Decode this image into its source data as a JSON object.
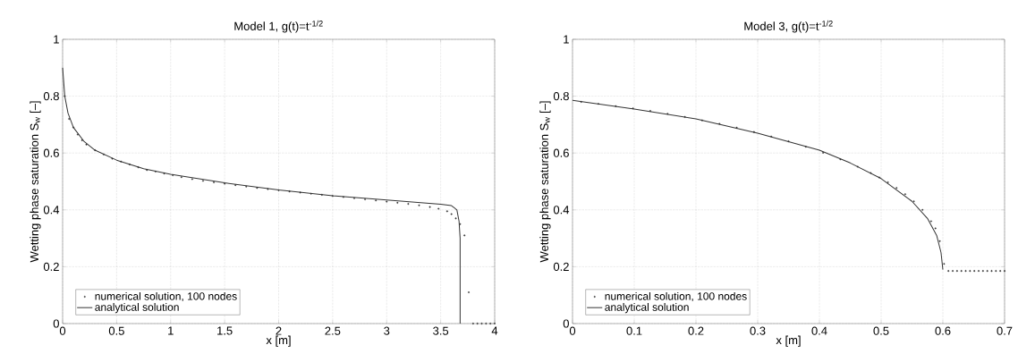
{
  "chart_data": [
    {
      "type": "line",
      "title": "Model 1, g(t)=t$^{-1/2}$",
      "xlabel": "x [m]",
      "ylabel": "Wetting phase saturation S$_{w}$ [–]",
      "xlim": [
        0,
        4
      ],
      "ylim": [
        0,
        1
      ],
      "xticks": [
        0,
        0.5,
        1,
        1.5,
        2,
        2.5,
        3,
        3.5,
        4
      ],
      "yticks": [
        0,
        0.2,
        0.4,
        0.6,
        0.8,
        1
      ],
      "grid": true,
      "legend": "bottom left",
      "series": [
        {
          "name": "numerical solution, 100 nodes",
          "type": "scatter",
          "marker": "circle",
          "color": "#333333",
          "x": [
            0.02,
            0.06,
            0.1,
            0.14,
            0.18,
            0.22,
            0.3,
            0.38,
            0.46,
            0.54,
            0.62,
            0.7,
            0.78,
            0.86,
            0.94,
            1.02,
            1.1,
            1.2,
            1.3,
            1.4,
            1.5,
            1.6,
            1.7,
            1.8,
            1.9,
            2.0,
            2.1,
            2.2,
            2.3,
            2.4,
            2.5,
            2.6,
            2.7,
            2.8,
            2.9,
            3.0,
            3.1,
            3.2,
            3.3,
            3.4,
            3.48,
            3.56,
            3.6,
            3.64,
            3.68,
            3.72,
            3.76,
            3.8,
            3.84,
            3.88,
            3.92,
            3.96,
            4.0
          ],
          "values": [
            0.8,
            0.72,
            0.69,
            0.665,
            0.645,
            0.63,
            0.61,
            0.595,
            0.58,
            0.57,
            0.56,
            0.55,
            0.54,
            0.535,
            0.528,
            0.522,
            0.515,
            0.508,
            0.502,
            0.497,
            0.492,
            0.487,
            0.482,
            0.477,
            0.473,
            0.469,
            0.465,
            0.461,
            0.457,
            0.453,
            0.449,
            0.445,
            0.441,
            0.437,
            0.433,
            0.429,
            0.425,
            0.421,
            0.416,
            0.41,
            0.404,
            0.395,
            0.385,
            0.37,
            0.35,
            0.31,
            0.11,
            0,
            0,
            0,
            0,
            0,
            0
          ]
        },
        {
          "name": "analytical solution",
          "marker": "none",
          "line_style": "solid",
          "color": "#333333",
          "x": [
            0,
            0.02,
            0.05,
            0.1,
            0.2,
            0.3,
            0.5,
            0.75,
            1,
            1.5,
            2,
            2.5,
            3,
            3.5,
            3.6,
            3.65,
            3.67,
            3.68,
            3.68
          ],
          "values": [
            0.9,
            0.8,
            0.74,
            0.69,
            0.64,
            0.61,
            0.575,
            0.545,
            0.525,
            0.495,
            0.47,
            0.45,
            0.435,
            0.42,
            0.415,
            0.4,
            0.36,
            0.3,
            0
          ]
        }
      ]
    },
    {
      "type": "line",
      "title": "Model 3, g(t)=t$^{-1/2}$",
      "xlabel": "x [m]",
      "ylabel": "Wetting phase saturation S$_{w}$ [–]",
      "xlim": [
        0,
        0.7
      ],
      "ylim": [
        0,
        1
      ],
      "xticks": [
        0,
        0.1,
        0.2,
        0.3,
        0.4,
        0.5,
        0.6,
        0.7
      ],
      "yticks": [
        0,
        0.2,
        0.4,
        0.6,
        0.8,
        1
      ],
      "grid": true,
      "legend": "bottom left",
      "series": [
        {
          "name": "numerical solution, 100 nodes",
          "type": "scatter",
          "marker": "circle",
          "color": "#333333",
          "x": [
            0.014,
            0.042,
            0.07,
            0.098,
            0.126,
            0.154,
            0.182,
            0.21,
            0.238,
            0.266,
            0.294,
            0.322,
            0.35,
            0.378,
            0.406,
            0.434,
            0.462,
            0.483,
            0.497,
            0.511,
            0.525,
            0.539,
            0.553,
            0.567,
            0.581,
            0.588,
            0.595,
            0.602,
            0.609,
            0.616,
            0.623,
            0.63,
            0.637,
            0.644,
            0.651,
            0.658,
            0.665,
            0.672,
            0.679,
            0.686,
            0.693,
            0.7
          ],
          "values": [
            0.78,
            0.773,
            0.765,
            0.757,
            0.748,
            0.738,
            0.727,
            0.715,
            0.703,
            0.689,
            0.674,
            0.658,
            0.641,
            0.622,
            0.601,
            0.578,
            0.552,
            0.53,
            0.514,
            0.497,
            0.477,
            0.455,
            0.43,
            0.4,
            0.36,
            0.335,
            0.29,
            0.21,
            0.185,
            0.185,
            0.185,
            0.185,
            0.185,
            0.185,
            0.185,
            0.185,
            0.185,
            0.185,
            0.185,
            0.185,
            0.185,
            0.185
          ]
        },
        {
          "name": "analytical solution",
          "marker": "none",
          "line_style": "solid",
          "color": "#333333",
          "x": [
            0,
            0.1,
            0.2,
            0.3,
            0.4,
            0.45,
            0.5,
            0.55,
            0.575,
            0.59,
            0.597,
            0.6
          ],
          "values": [
            0.785,
            0.755,
            0.72,
            0.67,
            0.61,
            0.565,
            0.51,
            0.43,
            0.37,
            0.31,
            0.25,
            0.19
          ]
        }
      ]
    }
  ]
}
